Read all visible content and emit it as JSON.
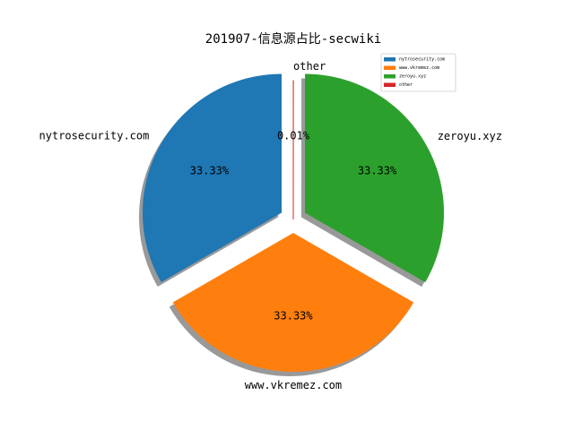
{
  "chart_data": {
    "type": "pie",
    "title": "201907-信息源占比-secwiki",
    "categories": [
      "nytrosecurity.com",
      "www.vkremez.com",
      "zeroyu.xyz",
      "other"
    ],
    "values": [
      33.33,
      33.33,
      33.33,
      0.01
    ],
    "value_labels": [
      "33.33%",
      "33.33%",
      "33.33%",
      "0.01%"
    ],
    "colors": [
      "#1f77b4",
      "#ff7f0e",
      "#2ca02c",
      "#d62728"
    ],
    "legend": "upper right",
    "shadow": true
  }
}
